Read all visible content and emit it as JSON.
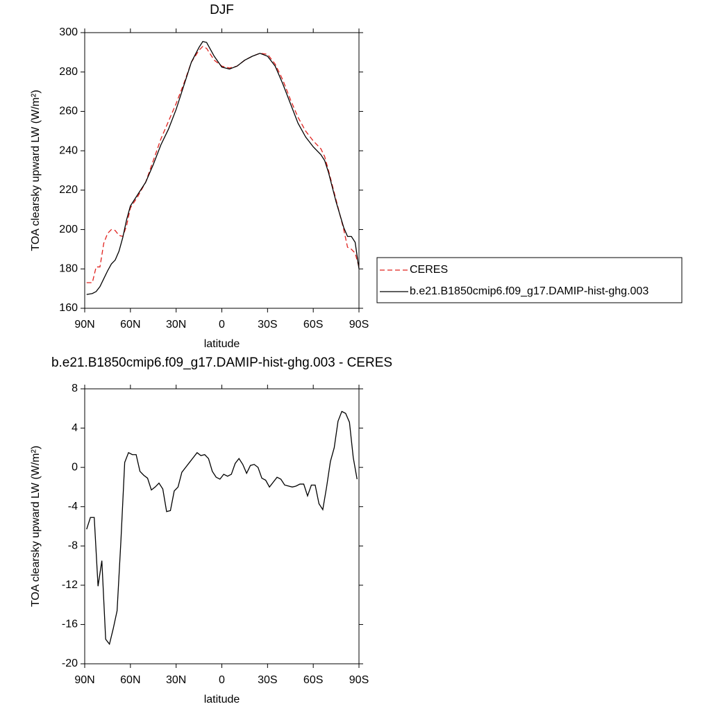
{
  "chart_data": [
    {
      "type": "line",
      "title": "DJF",
      "xlabel": "latitude",
      "ylabel": "TOA clearsky upward LW (W/m²)",
      "x": [
        88.75,
        85,
        82.5,
        80,
        77.5,
        75,
        72.5,
        70,
        67.5,
        65,
        62.5,
        60,
        55,
        50,
        45,
        40,
        35,
        30,
        25,
        20,
        15,
        12.5,
        10,
        5,
        0,
        -5,
        -10,
        -15,
        -20,
        -25,
        -30,
        -35,
        -40,
        -45,
        -50,
        -55,
        -60,
        -65,
        -67.5,
        -70,
        -75,
        -80,
        -82.5,
        -85,
        -87.5,
        -90
      ],
      "series": [
        {
          "name": "CERES",
          "color": "#e0201c",
          "linestyle": "dashed",
          "values": [
            173,
            173,
            181,
            181,
            193,
            198,
            200,
            199.5,
            197,
            196.5,
            202,
            211,
            217,
            224,
            235,
            246,
            255,
            264,
            274,
            285,
            291,
            293,
            292,
            286,
            283,
            282,
            283,
            286,
            288,
            289.5,
            289,
            284,
            276,
            266,
            257,
            250,
            245,
            241,
            237,
            230,
            215,
            200,
            191,
            190,
            188,
            181
          ]
        },
        {
          "name": "b.e21.B1850cmip6.f09_g17.DAMIP-hist-ghg.003",
          "color": "#000000",
          "linestyle": "solid",
          "values": [
            167,
            167.5,
            168.5,
            171,
            175,
            179,
            182.5,
            184.5,
            189,
            196,
            205,
            212,
            218,
            224,
            233,
            243,
            251,
            261,
            273,
            285,
            292.5,
            295.5,
            295,
            288,
            282.5,
            281.5,
            283,
            286,
            288,
            289.5,
            288,
            283,
            274,
            264,
            254,
            247,
            242,
            238,
            235,
            229,
            214,
            201,
            196.5,
            196.5,
            193.5,
            180
          ]
        }
      ],
      "xlim": [
        90,
        -90
      ],
      "xticks": [
        {
          "value": 90,
          "label": "90N"
        },
        {
          "value": 60,
          "label": "60N"
        },
        {
          "value": 30,
          "label": "30N"
        },
        0,
        {
          "value": -30,
          "label": "30S"
        },
        {
          "value": -60,
          "label": "60S"
        },
        {
          "value": -90,
          "label": "90S"
        }
      ],
      "ylim": [
        160,
        300
      ],
      "yticks": [
        160,
        180,
        200,
        220,
        240,
        260,
        280,
        300
      ],
      "legend": "right"
    },
    {
      "type": "line",
      "title": "b.e21.B1850cmip6.f09_g17.DAMIP-hist-ghg.003 - CERES",
      "xlabel": "latitude",
      "ylabel": "TOA clearsky upward LW (W/m²)",
      "x": [
        88.75,
        86.25,
        83.75,
        81.25,
        78.75,
        76.25,
        73.75,
        71.25,
        68.75,
        66.25,
        63.75,
        61.25,
        58.75,
        56.25,
        53.75,
        51.25,
        48.75,
        46.25,
        43.75,
        41.25,
        38.75,
        36.25,
        33.75,
        31.25,
        28.75,
        26.25,
        23.75,
        21.25,
        18.75,
        16.25,
        13.75,
        11.25,
        8.75,
        6.25,
        3.75,
        1.25,
        -1.25,
        -3.75,
        -6.25,
        -8.75,
        -11.25,
        -13.75,
        -16.25,
        -18.75,
        -21.25,
        -23.75,
        -26.25,
        -28.75,
        -31.25,
        -33.75,
        -36.25,
        -38.75,
        -41.25,
        -43.75,
        -46.25,
        -48.75,
        -51.25,
        -53.75,
        -56.25,
        -58.75,
        -61.25,
        -63.75,
        -66.25,
        -68.75,
        -71.25,
        -73.75,
        -76.25,
        -78.75,
        -81.25,
        -83.75,
        -86.25,
        -88.75
      ],
      "values": [
        -6.3,
        -5.1,
        -5.1,
        -12.1,
        -9.5,
        -17.5,
        -18.0,
        -16.4,
        -14.6,
        -7.5,
        0.5,
        1.5,
        1.3,
        1.3,
        -0.4,
        -0.8,
        -1.1,
        -2.3,
        -2.0,
        -1.6,
        -2.2,
        -4.5,
        -4.4,
        -2.4,
        -2.0,
        -0.5,
        0.0,
        0.5,
        1.0,
        1.5,
        1.2,
        1.3,
        0.9,
        -0.4,
        -1.0,
        -1.2,
        -0.7,
        -0.9,
        -0.7,
        0.4,
        0.9,
        0.3,
        -0.6,
        0.2,
        0.3,
        0.0,
        -1.1,
        -1.3,
        -2.0,
        -1.5,
        -1.0,
        -1.2,
        -1.8,
        -1.9,
        -2.0,
        -1.9,
        -1.7,
        -1.7,
        -2.9,
        -1.8,
        -1.8,
        -3.7,
        -4.3,
        -2.0,
        0.6,
        2.0,
        4.7,
        5.7,
        5.5,
        4.6,
        1.0,
        -1.2
      ],
      "color": "#000000",
      "xlim": [
        90,
        -90
      ],
      "xticks": [
        {
          "value": 90,
          "label": "90N"
        },
        {
          "value": 60,
          "label": "60N"
        },
        {
          "value": 30,
          "label": "30N"
        },
        0,
        {
          "value": -30,
          "label": "30S"
        },
        {
          "value": -60,
          "label": "60S"
        },
        {
          "value": -90,
          "label": "90S"
        }
      ],
      "ylim": [
        -20,
        8
      ],
      "yticks": [
        -20,
        -16,
        -12,
        -8,
        -4,
        0,
        4,
        8
      ]
    }
  ]
}
